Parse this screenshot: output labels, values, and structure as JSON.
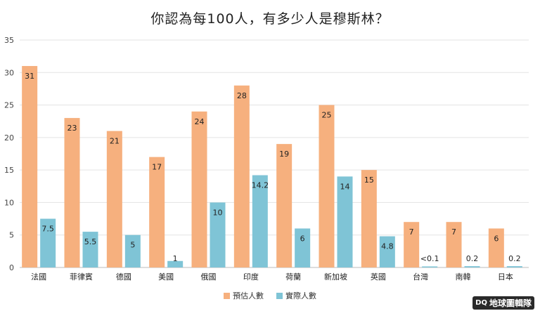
{
  "chart_data": {
    "type": "bar",
    "title": "你認為每100人，有多少人是穆斯林？",
    "categories": [
      "法國",
      "菲律賓",
      "德國",
      "美國",
      "俄國",
      "印度",
      "荷蘭",
      "新加坡",
      "英國",
      "台灣",
      "南韓",
      "日本"
    ],
    "series": [
      {
        "name": "預估人數",
        "color": "#f6b07e",
        "values": [
          31,
          23,
          21,
          17,
          24,
          28,
          19,
          25,
          15,
          7,
          7,
          6
        ],
        "labels": [
          "31",
          "23",
          "21",
          "17",
          "24",
          "28",
          "19",
          "25",
          "15",
          "7",
          "7",
          "6"
        ]
      },
      {
        "name": "實際人數",
        "color": "#7fc4d6",
        "values": [
          7.5,
          5.5,
          5,
          1,
          10,
          14.2,
          6,
          14,
          4.8,
          0.1,
          0.2,
          0.2
        ],
        "labels": [
          "7.5",
          "5.5",
          "5",
          "1",
          "10",
          "14.2",
          "6",
          "14",
          "4.8",
          "<0.1",
          "0.2",
          "0.2"
        ]
      }
    ],
    "ylim": [
      0,
      35
    ],
    "yticks": [
      "0",
      "5",
      "10",
      "15",
      "20",
      "25",
      "30",
      "35"
    ],
    "grid": true,
    "legend": "bottom"
  },
  "watermark": {
    "prefix": "DQ",
    "text": "地球圖輯隊"
  }
}
